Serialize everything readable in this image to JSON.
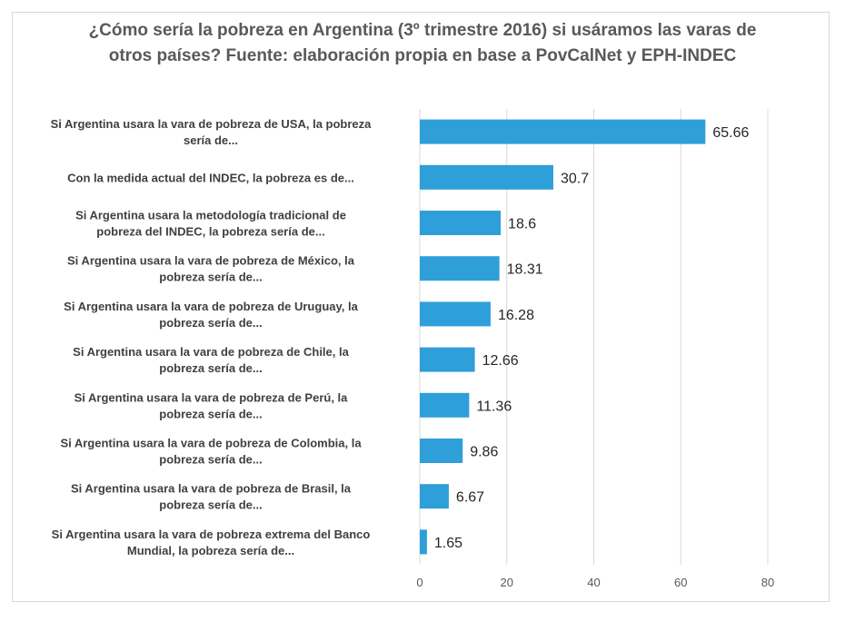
{
  "chart_data": {
    "type": "bar",
    "orientation": "horizontal",
    "title": "¿Cómo sería la pobreza en Argentina (3º trimestre 2016)  si usáramos las varas de otros países? Fuente: elaboración propia en base a PovCalNet y EPH-INDEC",
    "categories": [
      [
        "Si Argentina usara la vara de pobreza de USA, la pobreza",
        "sería de..."
      ],
      [
        "Con la medida actual del INDEC, la pobreza es de..."
      ],
      [
        "Si Argentina usara la metodología tradicional de",
        "pobreza del INDEC, la pobreza sería de..."
      ],
      [
        "Si Argentina usara la vara de pobreza de México, la",
        "pobreza sería de..."
      ],
      [
        "Si Argentina usara la vara de pobreza de Uruguay, la",
        "pobreza sería de..."
      ],
      [
        "Si Argentina usara la vara de pobreza de Chile, la",
        "pobreza sería de..."
      ],
      [
        "Si Argentina usara la vara de pobreza de Perú, la",
        "pobreza sería de..."
      ],
      [
        "Si Argentina usara la vara de pobreza de Colombia, la",
        "pobreza sería de..."
      ],
      [
        "Si Argentina usara la vara de pobreza de Brasil, la",
        "pobreza sería de..."
      ],
      [
        "Si Argentina usara la vara de pobreza extrema del Banco",
        "Mundial, la pobreza sería de..."
      ]
    ],
    "values": [
      65.66,
      30.7,
      18.6,
      18.31,
      16.28,
      12.66,
      11.36,
      9.86,
      6.67,
      1.65
    ],
    "value_labels": [
      "65.66",
      "30.7",
      "18.6",
      "18.31",
      "16.28",
      "12.66",
      "11.36",
      "9.86",
      "6.67",
      "1.65"
    ],
    "xlim": [
      0,
      80
    ],
    "xticks": [
      0,
      20,
      40,
      60,
      80
    ],
    "grid": true,
    "legend": "none",
    "colors": {
      "bar": "#2e9fd9",
      "grid": "#d9d9d9",
      "border": "#d9d9d9",
      "title": "#595959"
    }
  }
}
